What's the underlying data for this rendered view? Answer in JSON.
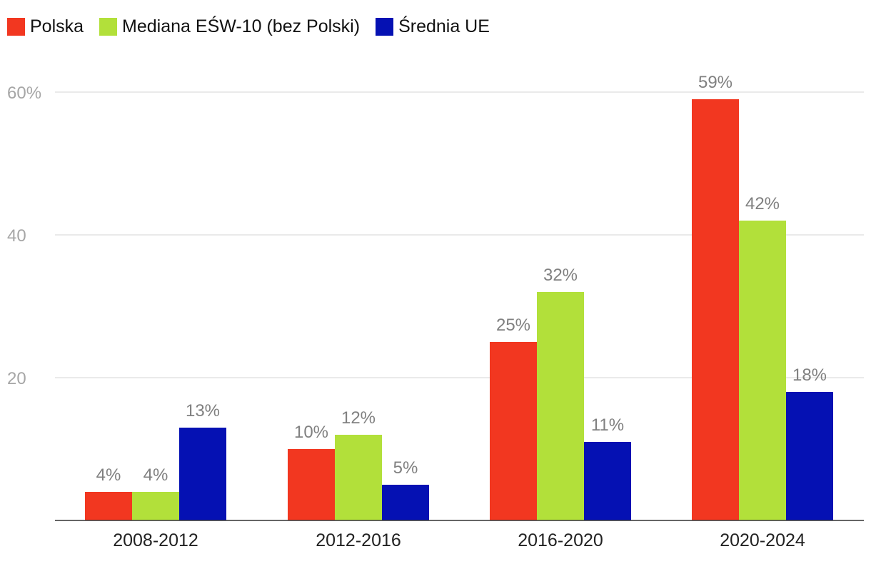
{
  "chart_data": {
    "type": "bar",
    "title": "",
    "xlabel": "",
    "ylabel": "",
    "categories": [
      "2008-2012",
      "2012-2016",
      "2016-2020",
      "2020-2024"
    ],
    "series": [
      {
        "name": "Polska",
        "color": "#f23720",
        "values": [
          4,
          10,
          25,
          59
        ],
        "labels": [
          "4%",
          "10%",
          "25%",
          "59%"
        ]
      },
      {
        "name": "Mediana EŚW-10 (bez Polski)",
        "color": "#b2e03a",
        "values": [
          4,
          12,
          32,
          42
        ],
        "labels": [
          "4%",
          "12%",
          "32%",
          "42%"
        ]
      },
      {
        "name": "Średnia UE",
        "color": "#0511b3",
        "values": [
          13,
          5,
          11,
          18
        ],
        "labels": [
          "13%",
          "5%",
          "11%",
          "18%"
        ]
      }
    ],
    "ylim": [
      0,
      60
    ],
    "yticks": [
      {
        "value": 20,
        "label": "20"
      },
      {
        "value": 40,
        "label": "40"
      },
      {
        "value": 60,
        "label": "60%"
      }
    ],
    "grid": true,
    "legend_position": "top-left"
  }
}
